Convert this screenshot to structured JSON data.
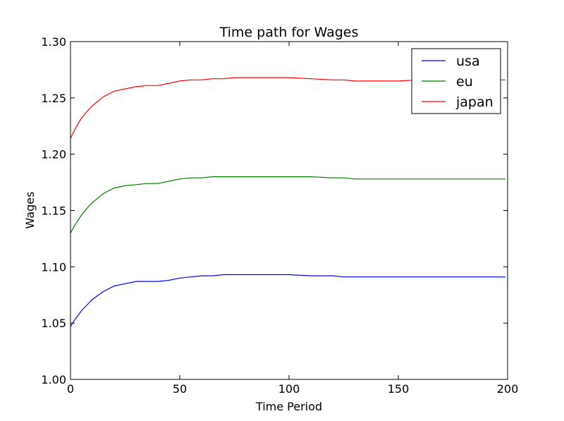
{
  "chart_data": {
    "type": "line",
    "title": "Time path for Wages",
    "xlabel": "Time Period",
    "ylabel": "Wages",
    "xlim": [
      0,
      200
    ],
    "ylim": [
      1.0,
      1.3
    ],
    "xticks": [
      0,
      50,
      100,
      150,
      200
    ],
    "yticks": [
      1.0,
      1.05,
      1.1,
      1.15,
      1.2,
      1.25,
      1.3
    ],
    "xtick_labels": [
      "0",
      "50",
      "100",
      "150",
      "200"
    ],
    "ytick_labels": [
      "1.00",
      "1.05",
      "1.10",
      "1.15",
      "1.20",
      "1.25",
      "1.30"
    ],
    "grid": false,
    "legend_position": "top-right",
    "series": [
      {
        "name": "usa",
        "color": "#0000ff",
        "x": [
          0,
          2,
          5,
          8,
          10,
          15,
          20,
          25,
          30,
          35,
          40,
          45,
          50,
          55,
          60,
          65,
          70,
          75,
          80,
          90,
          100,
          110,
          120,
          125,
          130,
          135,
          140,
          150,
          160,
          170,
          180,
          190,
          199
        ],
        "y": [
          1.047,
          1.053,
          1.061,
          1.067,
          1.071,
          1.078,
          1.083,
          1.085,
          1.087,
          1.087,
          1.087,
          1.088,
          1.09,
          1.091,
          1.092,
          1.092,
          1.093,
          1.093,
          1.093,
          1.093,
          1.093,
          1.092,
          1.092,
          1.091,
          1.091,
          1.091,
          1.091,
          1.091,
          1.091,
          1.091,
          1.091,
          1.091,
          1.091
        ]
      },
      {
        "name": "eu",
        "color": "#008000",
        "x": [
          0,
          2,
          5,
          8,
          10,
          15,
          20,
          25,
          30,
          35,
          40,
          45,
          50,
          55,
          60,
          65,
          70,
          75,
          80,
          90,
          100,
          110,
          120,
          125,
          130,
          135,
          140,
          150,
          160,
          170,
          180,
          190,
          199
        ],
        "y": [
          1.13,
          1.137,
          1.146,
          1.153,
          1.157,
          1.165,
          1.17,
          1.172,
          1.173,
          1.174,
          1.174,
          1.176,
          1.178,
          1.179,
          1.179,
          1.18,
          1.18,
          1.18,
          1.18,
          1.18,
          1.18,
          1.18,
          1.179,
          1.179,
          1.178,
          1.178,
          1.178,
          1.178,
          1.178,
          1.178,
          1.178,
          1.178,
          1.178
        ]
      },
      {
        "name": "japan",
        "color": "#ff0000",
        "x": [
          0,
          2,
          5,
          8,
          10,
          15,
          20,
          25,
          30,
          35,
          40,
          45,
          50,
          55,
          60,
          65,
          70,
          75,
          80,
          90,
          100,
          110,
          120,
          125,
          130,
          135,
          140,
          150,
          160,
          170,
          180,
          190,
          199
        ],
        "y": [
          1.214,
          1.222,
          1.232,
          1.239,
          1.243,
          1.251,
          1.256,
          1.258,
          1.26,
          1.261,
          1.261,
          1.263,
          1.265,
          1.266,
          1.266,
          1.267,
          1.267,
          1.268,
          1.268,
          1.268,
          1.268,
          1.267,
          1.266,
          1.266,
          1.265,
          1.265,
          1.265,
          1.265,
          1.266,
          1.266,
          1.266,
          1.266,
          1.266
        ]
      }
    ]
  }
}
